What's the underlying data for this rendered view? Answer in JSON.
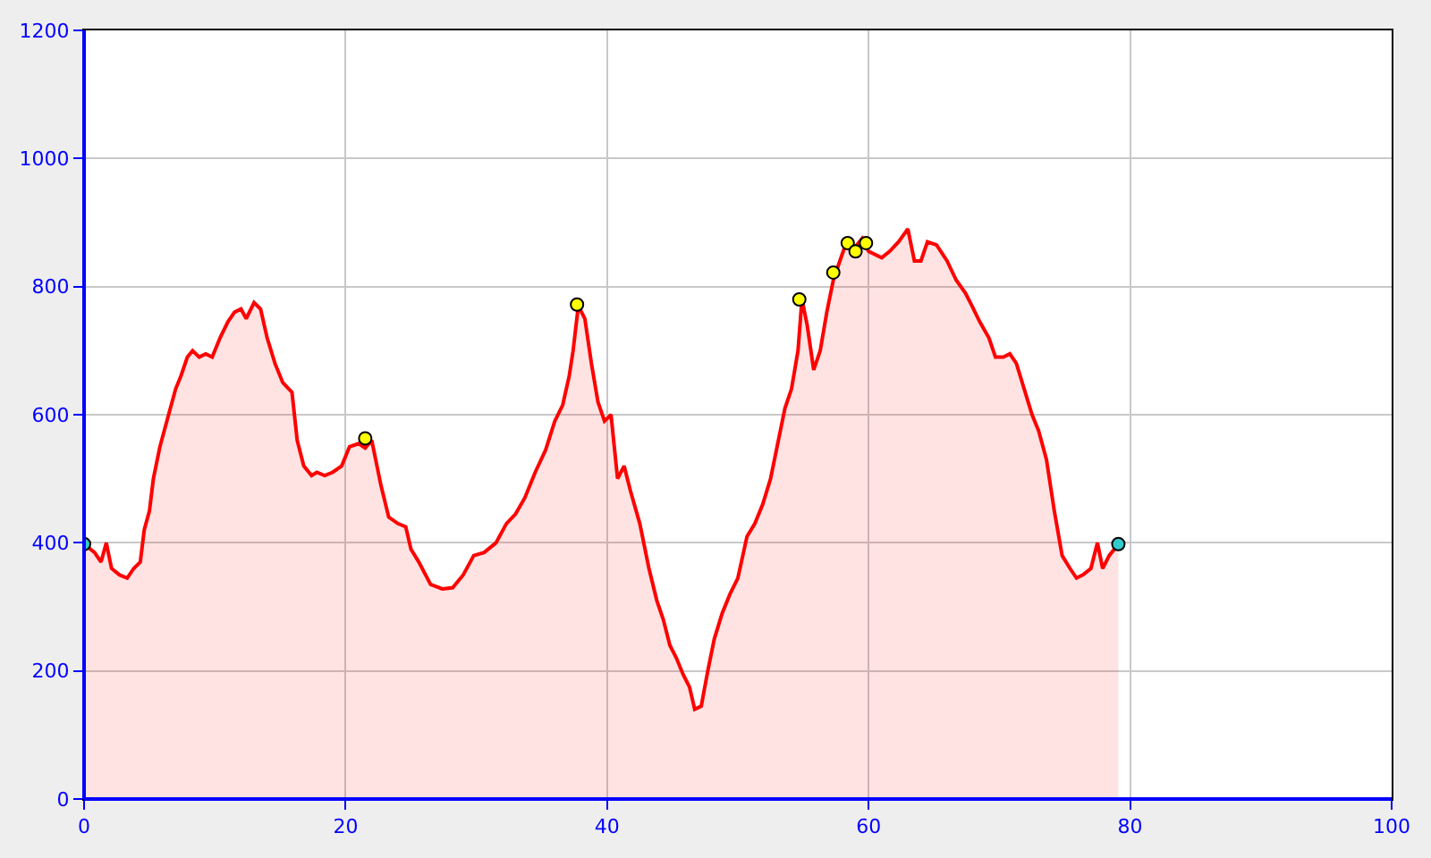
{
  "chart_data": {
    "type": "area",
    "xlim": [
      0,
      100
    ],
    "ylim": [
      0,
      1200
    ],
    "xticks": [
      0,
      20,
      40,
      60,
      80,
      100
    ],
    "yticks": [
      0,
      200,
      400,
      600,
      800,
      1000,
      1200
    ],
    "grid": true,
    "legend": false,
    "series": [
      {
        "color": "#ff0000",
        "x": [
          0,
          0.8,
          1.3,
          1.7,
          2.1,
          2.7,
          3.3,
          3.8,
          4.3,
          4.6,
          5.0,
          5.3,
          5.8,
          6.2,
          6.6,
          7.0,
          7.4,
          7.9,
          8.3,
          8.8,
          9.3,
          9.8,
          10.4,
          11.0,
          11.5,
          12.0,
          12.4,
          13.0,
          13.5,
          14.0,
          14.6,
          15.2,
          15.9,
          16.3,
          16.8,
          17.4,
          17.8,
          18.4,
          19.0,
          19.7,
          20.3,
          21.0,
          21.5,
          22.0,
          22.7,
          23.3,
          24.0,
          24.6,
          25.0,
          25.6,
          26.5,
          27.4,
          28.2,
          29.0,
          29.8,
          30.6,
          31.5,
          32.3,
          33.0,
          33.7,
          34.5,
          35.3,
          36.0,
          36.6,
          37.1,
          37.4,
          37.8,
          38.3,
          38.8,
          39.3,
          39.8,
          40.3,
          40.8,
          41.3,
          41.8,
          42.5,
          43.2,
          43.8,
          44.3,
          44.8,
          45.3,
          45.8,
          46.3,
          46.7,
          47.2,
          47.7,
          48.2,
          48.8,
          49.4,
          50.0,
          50.7,
          51.3,
          51.9,
          52.5,
          53.1,
          53.6,
          54.1,
          54.6,
          54.9,
          55.3,
          55.8,
          56.3,
          56.8,
          57.3,
          57.8,
          58.4,
          58.9,
          59.5,
          60.0,
          61.0,
          61.6,
          62.3,
          63.0,
          63.5,
          64.0,
          64.5,
          65.2,
          66.0,
          66.7,
          67.4,
          67.9,
          68.5,
          69.2,
          69.7,
          70.3,
          70.8,
          71.3,
          71.9,
          72.5,
          73.0,
          73.6,
          74.2,
          74.8,
          75.4,
          75.9,
          76.4,
          77.0,
          77.5,
          77.9,
          78.4,
          79.1
        ],
        "values": [
          398,
          385,
          370,
          400,
          360,
          350,
          345,
          360,
          370,
          420,
          450,
          500,
          550,
          580,
          610,
          640,
          660,
          690,
          700,
          690,
          695,
          690,
          720,
          745,
          760,
          765,
          750,
          775,
          765,
          720,
          680,
          650,
          635,
          560,
          520,
          505,
          510,
          505,
          510,
          520,
          550,
          555,
          548,
          560,
          490,
          440,
          430,
          425,
          390,
          370,
          335,
          328,
          330,
          350,
          380,
          385,
          400,
          430,
          445,
          470,
          510,
          545,
          590,
          615,
          660,
          700,
          770,
          750,
          680,
          620,
          590,
          600,
          500,
          520,
          480,
          430,
          360,
          310,
          280,
          240,
          220,
          195,
          175,
          140,
          145,
          200,
          250,
          290,
          320,
          345,
          410,
          430,
          460,
          500,
          560,
          610,
          640,
          700,
          780,
          740,
          670,
          700,
          760,
          810,
          840,
          875,
          860,
          875,
          855,
          845,
          855,
          870,
          890,
          840,
          840,
          870,
          865,
          840,
          810,
          790,
          770,
          745,
          720,
          690,
          690,
          695,
          680,
          640,
          600,
          575,
          530,
          450,
          380,
          360,
          345,
          350,
          360,
          400,
          360,
          380,
          398
        ]
      },
      {
        "type": "scatter",
        "marker": "circle",
        "x": [
          0,
          21.5,
          37.7,
          54.7,
          57.3,
          58.4,
          59.0,
          59.8,
          79.1
        ],
        "values": [
          398,
          563,
          772,
          780,
          822,
          868,
          855,
          868,
          398
        ],
        "colors": [
          "#33cccc",
          "#ffff00",
          "#ffff00",
          "#ffff00",
          "#ffff00",
          "#ffff00",
          "#ffff00",
          "#ffff00",
          "#33cccc"
        ]
      }
    ]
  }
}
